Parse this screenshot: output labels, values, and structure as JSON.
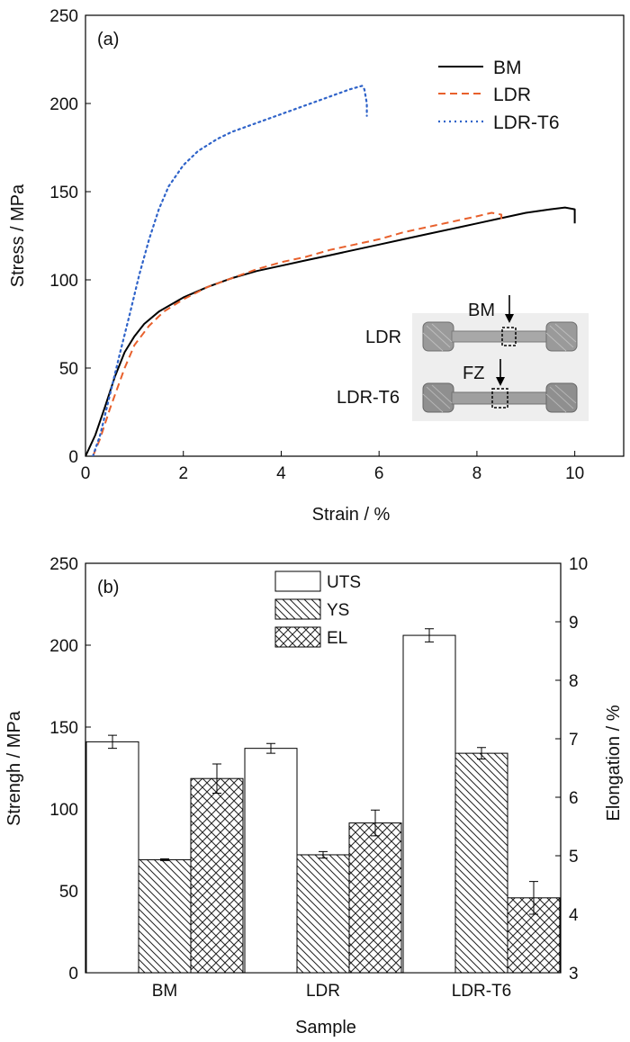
{
  "chart_data": [
    {
      "type": "line",
      "panel_label": "(a)",
      "xlabel": "Strain / %",
      "ylabel": "Stress / MPa",
      "xlim": [
        0,
        11
      ],
      "ylim": [
        0,
        250
      ],
      "xticks": [
        "0",
        "2",
        "4",
        "6",
        "8",
        "10"
      ],
      "yticks": [
        "0",
        "50",
        "100",
        "150",
        "200",
        "250"
      ],
      "legend_position": "top-right",
      "series": [
        {
          "name": "BM",
          "color": "#000000",
          "dash": "solid",
          "points": [
            [
              0,
              0
            ],
            [
              0.2,
              12
            ],
            [
              0.4,
              28
            ],
            [
              0.6,
              45
            ],
            [
              0.8,
              59
            ],
            [
              1.0,
              68
            ],
            [
              1.2,
              75
            ],
            [
              1.5,
              82
            ],
            [
              2.0,
              90
            ],
            [
              2.5,
              96
            ],
            [
              3.0,
              101
            ],
            [
              3.5,
              105
            ],
            [
              4.0,
              108
            ],
            [
              4.5,
              111
            ],
            [
              5.0,
              114
            ],
            [
              5.5,
              117
            ],
            [
              6.0,
              120
            ],
            [
              6.5,
              123
            ],
            [
              7.0,
              126
            ],
            [
              7.5,
              129
            ],
            [
              8.0,
              132
            ],
            [
              8.5,
              135
            ],
            [
              9.0,
              138
            ],
            [
              9.5,
              140
            ],
            [
              9.8,
              141
            ],
            [
              10.0,
              140
            ],
            [
              10.0,
              132
            ]
          ]
        },
        {
          "name": "LDR",
          "color": "#e8602c",
          "dash": "dashed",
          "points": [
            [
              0.15,
              0
            ],
            [
              0.3,
              10
            ],
            [
              0.5,
              27
            ],
            [
              0.8,
              50
            ],
            [
              1.0,
              63
            ],
            [
              1.3,
              74
            ],
            [
              1.6,
              82
            ],
            [
              2.0,
              89
            ],
            [
              2.5,
              96
            ],
            [
              3.0,
              101
            ],
            [
              3.5,
              106
            ],
            [
              4.0,
              110
            ],
            [
              4.5,
              113
            ],
            [
              5.0,
              117
            ],
            [
              5.5,
              120
            ],
            [
              6.0,
              123
            ],
            [
              6.5,
              127
            ],
            [
              7.0,
              130
            ],
            [
              7.5,
              133
            ],
            [
              8.0,
              136
            ],
            [
              8.3,
              138
            ],
            [
              8.5,
              137
            ],
            [
              8.5,
              132
            ]
          ]
        },
        {
          "name": "LDR-T6",
          "color": "#2f63c9",
          "dash": "dotted",
          "points": [
            [
              0.15,
              0
            ],
            [
              0.3,
              12
            ],
            [
              0.5,
              35
            ],
            [
              0.7,
              58
            ],
            [
              0.9,
              80
            ],
            [
              1.1,
              103
            ],
            [
              1.3,
              123
            ],
            [
              1.5,
              140
            ],
            [
              1.7,
              153
            ],
            [
              2.0,
              165
            ],
            [
              2.3,
              173
            ],
            [
              2.7,
              180
            ],
            [
              3.0,
              184
            ],
            [
              3.5,
              189
            ],
            [
              4.0,
              194
            ],
            [
              4.5,
              199
            ],
            [
              5.0,
              204
            ],
            [
              5.4,
              208
            ],
            [
              5.65,
              210
            ],
            [
              5.7,
              208
            ],
            [
              5.75,
              200
            ],
            [
              5.75,
              193
            ]
          ]
        }
      ],
      "inset": {
        "labels": [
          "LDR",
          "LDR-T6"
        ],
        "markers": [
          "BM",
          "FZ"
        ]
      }
    },
    {
      "type": "bar",
      "panel_label": "(b)",
      "xlabel": "Sample",
      "ylabel": "Strengh / MPa",
      "y2label": "Elongation / %",
      "categories": [
        "BM",
        "LDR",
        "LDR-T6"
      ],
      "ylim": [
        0,
        250
      ],
      "y2lim": [
        3,
        10
      ],
      "yticks": [
        "0",
        "50",
        "100",
        "150",
        "200",
        "250"
      ],
      "y2ticks": [
        "3",
        "4",
        "5",
        "6",
        "7",
        "8",
        "9",
        "10"
      ],
      "legend_position": "top-center",
      "series": [
        {
          "name": "UTS",
          "axis": "left",
          "pattern": "open",
          "values": [
            141,
            137,
            206
          ],
          "errors": [
            4,
            3,
            4
          ]
        },
        {
          "name": "YS",
          "axis": "left",
          "pattern": "diagonal-hatch",
          "values": [
            69,
            72,
            134
          ],
          "errors": [
            0.5,
            2,
            3.5
          ]
        },
        {
          "name": "EL",
          "axis": "right",
          "pattern": "cross-hatch",
          "values": [
            6.32,
            5.56,
            4.28
          ],
          "errors": [
            0.25,
            0.22,
            0.28
          ]
        }
      ]
    }
  ]
}
